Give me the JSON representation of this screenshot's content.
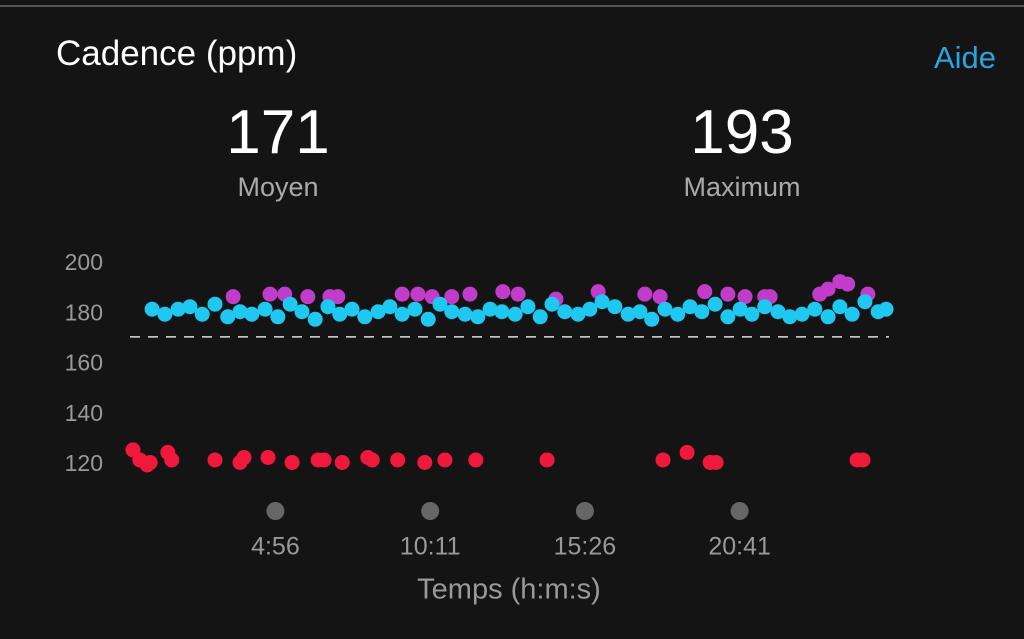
{
  "header": {
    "title": "Cadence (ppm)",
    "help": "Aide"
  },
  "summary": {
    "average": {
      "value": 171,
      "label": "Moyen"
    },
    "maximum": {
      "value": 193,
      "label": "Maximum"
    }
  },
  "chart_data": {
    "type": "scatter",
    "x_label": "Temps (h:m:s)",
    "xlim": [
      0,
      1545
    ],
    "ylim": [
      116,
      201
    ],
    "xticks": [
      {
        "value": 296,
        "label": "4:56"
      },
      {
        "value": 611,
        "label": "10:11"
      },
      {
        "value": 926,
        "label": "15:26"
      },
      {
        "value": 1241,
        "label": "20:41"
      }
    ],
    "yticks": [
      120,
      140,
      160,
      180,
      200
    ],
    "grid": false,
    "series": [
      {
        "color": "#f0193c",
        "x": [
          6,
          20,
          35,
          41,
          77,
          85,
          173,
          224,
          232,
          281,
          330,
          383,
          395,
          432,
          484,
          493,
          545,
          600,
          641,
          704,
          849,
          1085,
          1134,
          1181,
          1193,
          1480,
          1492
        ],
        "values": [
          126,
          122,
          120,
          121,
          125,
          122,
          122,
          121,
          123,
          123,
          121,
          122,
          122,
          121,
          123,
          122,
          122,
          121,
          122,
          122,
          122,
          122,
          125,
          121,
          121,
          122,
          122
        ]
      },
      {
        "color": "#c23ccb",
        "x": [
          210,
          285,
          315,
          362,
          407,
          423,
          554,
          586,
          615,
          655,
          692,
          759,
          790,
          867,
          953,
          1048,
          1079,
          1170,
          1217,
          1252,
          1292,
          1303,
          1404,
          1421,
          1445,
          1461,
          1502
        ],
        "values": [
          187,
          188,
          188,
          187,
          187,
          187,
          188,
          188,
          187,
          187,
          188,
          189,
          188,
          186,
          189,
          188,
          187,
          189,
          188,
          187,
          187,
          187,
          188,
          190,
          193,
          192,
          188
        ]
      },
      {
        "color": "#1ec8f0",
        "x": [
          45,
          71,
          98,
          122,
          147,
          173,
          199,
          224,
          248,
          275,
          301,
          326,
          350,
          377,
          403,
          427,
          452,
          478,
          505,
          529,
          554,
          580,
          607,
          631,
          655,
          682,
          708,
          733,
          757,
          784,
          810,
          835,
          859,
          885,
          912,
          936,
          961,
          987,
          1014,
          1038,
          1062,
          1089,
          1115,
          1140,
          1164,
          1191,
          1217,
          1242,
          1266,
          1292,
          1319,
          1343,
          1368,
          1394,
          1421,
          1445,
          1470,
          1496,
          1523,
          1539
        ],
        "values": [
          182,
          180,
          182,
          183,
          180,
          184,
          179,
          181,
          180,
          182,
          179,
          184,
          181,
          178,
          183,
          180,
          182,
          179,
          181,
          183,
          180,
          182,
          178,
          184,
          181,
          180,
          179,
          182,
          181,
          180,
          183,
          179,
          184,
          181,
          180,
          182,
          185,
          183,
          180,
          181,
          178,
          182,
          180,
          183,
          181,
          184,
          179,
          182,
          180,
          183,
          181,
          179,
          180,
          182,
          179,
          183,
          180,
          185,
          181,
          182
        ]
      }
    ]
  }
}
